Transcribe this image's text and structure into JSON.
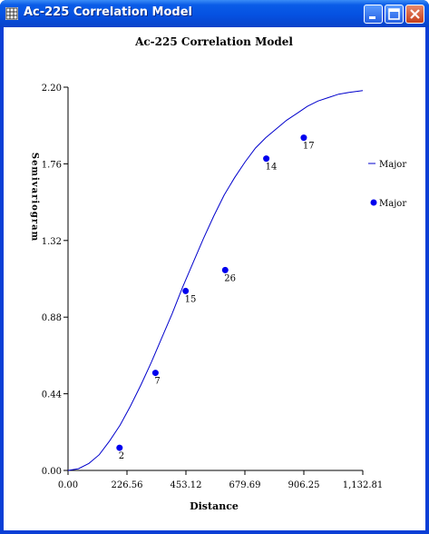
{
  "window": {
    "title": "Ac-225 Correlation Model",
    "icon": "grid-app-icon",
    "controls": [
      "minimize-icon",
      "maximize-icon",
      "close-icon"
    ]
  },
  "chart_data": {
    "type": "scatter",
    "title": "Ac-225 Correlation Model",
    "xlabel": "Distance",
    "ylabel": "Semivariogram",
    "xlim": [
      0,
      1132.81
    ],
    "ylim": [
      0,
      2.2
    ],
    "x_ticks": [
      "0.00",
      "226.56",
      "453.12",
      "679.69",
      "906.25",
      "1,132.81"
    ],
    "y_ticks": [
      "0.00",
      "0.44",
      "0.88",
      "1.32",
      "1.76",
      "2.20"
    ],
    "grid": false,
    "legend_position": "right",
    "series": [
      {
        "name": "Major",
        "type": "line",
        "color": "#0000cc",
        "x": [
          0,
          40,
          80,
          120,
          160,
          200,
          240,
          280,
          320,
          360,
          400,
          440,
          480,
          520,
          560,
          600,
          640,
          680,
          720,
          760,
          800,
          840,
          880,
          920,
          960,
          1000,
          1040,
          1080,
          1132.81
        ],
        "y": [
          0,
          0.01,
          0.04,
          0.09,
          0.17,
          0.26,
          0.37,
          0.49,
          0.62,
          0.76,
          0.9,
          1.05,
          1.19,
          1.33,
          1.46,
          1.58,
          1.68,
          1.77,
          1.85,
          1.91,
          1.96,
          2.01,
          2.05,
          2.09,
          2.12,
          2.14,
          2.16,
          2.17,
          2.18
        ]
      },
      {
        "name": "Major",
        "type": "scatter",
        "color": "#0000ee",
        "points": [
          {
            "x": 198,
            "y": 0.13,
            "label": "2"
          },
          {
            "x": 336,
            "y": 0.56,
            "label": "7"
          },
          {
            "x": 452,
            "y": 1.03,
            "label": "15"
          },
          {
            "x": 604,
            "y": 1.15,
            "label": "26"
          },
          {
            "x": 762,
            "y": 1.79,
            "label": "14"
          },
          {
            "x": 906,
            "y": 1.91,
            "label": "17"
          }
        ]
      }
    ]
  }
}
